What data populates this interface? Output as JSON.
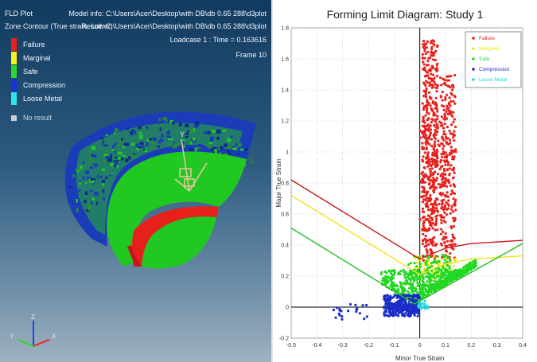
{
  "viewport": {
    "plot_title": "FLD Plot",
    "contour_label": "Zone Contour (True strain, Lower)",
    "model_info": "Model info: C:\\Users\\Acer\\Desktop\\with DB\\db 0.65 288\\d3plot",
    "result": "Result: C:\\Users\\Acer\\Desktop\\with DB\\db 0.65 288\\d3plot",
    "loadcase": "Loadcase 1 : Time = 0.163616",
    "frame": "Frame 10",
    "legend": [
      {
        "label": "Failure",
        "color": "#e8201c"
      },
      {
        "label": "Marginal",
        "color": "#f5f020"
      },
      {
        "label": "Safe",
        "color": "#2ad82a"
      },
      {
        "label": "Compression",
        "color": "#1a33d8"
      },
      {
        "label": "Loose Metal",
        "color": "#2ee6ee"
      }
    ],
    "no_result": "No result",
    "axes": {
      "x": "X",
      "y": "Y",
      "z": "Z"
    },
    "part_triad_label": "Y"
  },
  "chart_data": {
    "type": "scatter",
    "title": "Forming Limit Diagram: Study 1",
    "xlabel": "Minor True Strain",
    "ylabel": "Major True Strain",
    "xlim": [
      -0.5,
      0.4
    ],
    "ylim": [
      -0.2,
      1.8
    ],
    "x_ticks": [
      "-0.5",
      "-0.4",
      "-0.3",
      "-0.2",
      "-0.1",
      "0",
      "0.1",
      "0.2",
      "0.3",
      "0.4"
    ],
    "y_ticks": [
      "-0.2",
      "0",
      "0.2",
      "0.4",
      "0.6",
      "0.8",
      "1",
      "1.2",
      "1.4",
      "1.6",
      "1.8"
    ],
    "grid": true,
    "legend_position": "top-right",
    "colors": {
      "failure": "#e8201c",
      "marginal": "#f0e418",
      "safe": "#22d822",
      "compression": "#1a2cc8",
      "loose_metal": "#22d8e0",
      "axis": "#000000"
    },
    "limit_curves": [
      {
        "name": "Failure",
        "color": "#c8141c",
        "points": [
          [
            -0.5,
            0.82
          ],
          [
            0.0,
            0.31
          ],
          [
            0.1,
            0.38
          ],
          [
            0.2,
            0.41
          ],
          [
            0.4,
            0.43
          ]
        ]
      },
      {
        "name": "Marginal",
        "color": "#f0e418",
        "points": [
          [
            -0.5,
            0.72
          ],
          [
            0.0,
            0.21
          ],
          [
            0.1,
            0.28
          ],
          [
            0.2,
            0.31
          ],
          [
            0.4,
            0.33
          ]
        ]
      },
      {
        "name": "Safe",
        "color": "#22c022",
        "points": [
          [
            -0.5,
            0.51
          ],
          [
            -0.02,
            0.02
          ],
          [
            0.4,
            0.41
          ]
        ]
      }
    ],
    "series": [
      {
        "name": "Failure",
        "color": "#e8201c",
        "clusters": [
          {
            "x": [
              0.01,
              0.07
            ],
            "y": [
              0.3,
              1.72
            ],
            "n": 420
          },
          {
            "x": [
              0.08,
              0.14
            ],
            "y": [
              0.3,
              1.5
            ],
            "n": 260
          },
          {
            "x": [
              0.0,
              0.1
            ],
            "y": [
              0.55,
              1.2
            ],
            "n": 120
          }
        ]
      },
      {
        "name": "Marginal",
        "color": "#f0e418",
        "clusters": [
          {
            "x": [
              -0.02,
              0.14
            ],
            "y": [
              0.18,
              0.33
            ],
            "n": 80
          }
        ]
      },
      {
        "name": "Safe",
        "color": "#22d822",
        "clusters": [
          {
            "x": [
              -0.15,
              0.22
            ],
            "y": [
              0.02,
              0.24
            ],
            "n": 520
          },
          {
            "x": [
              -0.05,
              0.12
            ],
            "y": [
              0.02,
              0.34
            ],
            "n": 160
          }
        ]
      },
      {
        "name": "Compression",
        "color": "#1a2cc8",
        "clusters": [
          {
            "x": [
              -0.14,
              0.0
            ],
            "y": [
              -0.06,
              0.08
            ],
            "n": 320
          },
          {
            "x": [
              -0.34,
              -0.2
            ],
            "y": [
              -0.08,
              0.02
            ],
            "n": 22
          }
        ]
      },
      {
        "name": "Loose Metal",
        "color": "#22d8e0",
        "clusters": [
          {
            "x": [
              -0.01,
              0.03
            ],
            "y": [
              -0.01,
              0.04
            ],
            "n": 25
          }
        ]
      }
    ]
  }
}
